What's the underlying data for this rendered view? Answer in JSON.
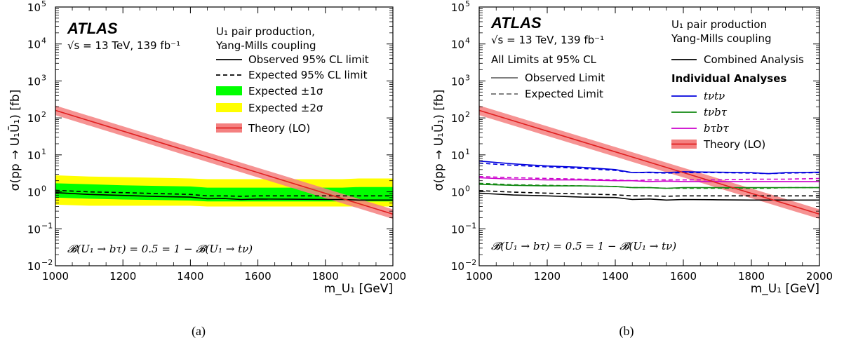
{
  "chart_data": [
    {
      "type": "line",
      "panel_caption": "(a)",
      "atlas_label": "ATLAS",
      "energy_lumi": "√s = 13 TeV, 139 fb⁻¹",
      "legend_title": [
        "U₁ pair production,",
        "Yang-Mills coupling"
      ],
      "limits_note": "",
      "xlabel": "m_U₁ [GeV]",
      "ylabel": "σ(pp → U₁Ū₁) [fb]",
      "branching_note": "𝓑(U₁ → bτ) = 0.5 = 1 − 𝓑(U₁ → tν)",
      "xlim": [
        1000,
        2000
      ],
      "ylim": [
        0.01,
        100000
      ],
      "yscale": "log",
      "x_ticks": [
        "1000",
        "1200",
        "1400",
        "1600",
        "1800",
        "2000"
      ],
      "y_ticks": [
        "10⁻²",
        "10⁻¹",
        "1",
        "10",
        "10²",
        "10³",
        "10⁴",
        "10⁵"
      ],
      "y_tick_labels": [
        "10",
        "10",
        "10",
        "10",
        "10",
        "10",
        "10",
        "10"
      ],
      "y_tick_exps": [
        "-2",
        "-1",
        "0",
        "1",
        "2",
        "3",
        "4",
        "5"
      ],
      "x": [
        1000,
        1100,
        1200,
        1300,
        1400,
        1450,
        1500,
        1550,
        1600,
        1700,
        1800,
        1850,
        1900,
        2000
      ],
      "bands": [
        {
          "name": "Expected ±2σ",
          "color": "#ffff00",
          "lower": [
            0.45,
            0.42,
            0.42,
            0.42,
            0.42,
            0.4,
            0.4,
            0.4,
            0.4,
            0.4,
            0.4,
            0.4,
            0.4,
            0.4
          ],
          "upper": [
            2.8,
            2.6,
            2.5,
            2.4,
            2.3,
            2.2,
            2.2,
            2.2,
            2.2,
            2.2,
            2.2,
            2.2,
            2.3,
            2.3
          ]
        },
        {
          "name": "Expected ±1σ",
          "color": "#00ff00",
          "lower": [
            0.7,
            0.65,
            0.62,
            0.6,
            0.58,
            0.55,
            0.55,
            0.55,
            0.55,
            0.55,
            0.55,
            0.55,
            0.55,
            0.55
          ],
          "upper": [
            1.7,
            1.6,
            1.5,
            1.45,
            1.4,
            1.3,
            1.3,
            1.3,
            1.3,
            1.3,
            1.3,
            1.3,
            1.35,
            1.35
          ]
        }
      ],
      "series": [
        {
          "name": "Observed 95% CL limit",
          "color": "#000000",
          "dash": "solid",
          "values": [
            0.95,
            0.85,
            0.8,
            0.75,
            0.72,
            0.65,
            0.66,
            0.62,
            0.64,
            0.63,
            0.62,
            0.62,
            0.6,
            0.6
          ]
        },
        {
          "name": "Expected 95% CL limit",
          "color": "#000000",
          "dash": "dashed",
          "values": [
            1.1,
            1.0,
            0.95,
            0.9,
            0.85,
            0.78,
            0.78,
            0.76,
            0.78,
            0.78,
            0.78,
            0.78,
            0.78,
            0.78
          ]
        }
      ],
      "theory": {
        "name": "Theory (LO)",
        "color": "#e02020",
        "band_color": "#f48080",
        "x": [
          1000,
          2000
        ],
        "values": [
          160,
          0.25
        ],
        "band_factor": 1.35
      },
      "legend_order": [
        "Observed 95% CL limit",
        "Expected 95% CL limit",
        "Expected ±1σ",
        "Expected ±2σ",
        "Theory (LO)"
      ]
    },
    {
      "type": "line",
      "panel_caption": "(b)",
      "atlas_label": "ATLAS",
      "energy_lumi": "√s = 13 TeV, 139 fb⁻¹",
      "legend_title": [
        "U₁ pair production",
        "Yang-Mills coupling"
      ],
      "limits_note": "All Limits at 95% CL",
      "xlabel": "m_U₁ [GeV]",
      "ylabel": "σ(pp → U₁Ū₁) [fb]",
      "branching_note": "𝓑(U₁ → bτ) = 0.5 = 1 − 𝓑(U₁ → tν)",
      "xlim": [
        1000,
        2000
      ],
      "ylim": [
        0.01,
        100000
      ],
      "yscale": "log",
      "x_ticks": [
        "1000",
        "1200",
        "1400",
        "1600",
        "1800",
        "2000"
      ],
      "y_tick_labels": [
        "10",
        "10",
        "10",
        "10",
        "10",
        "10",
        "10",
        "10"
      ],
      "y_tick_exps": [
        "-2",
        "-1",
        "0",
        "1",
        "2",
        "3",
        "4",
        "5"
      ],
      "x": [
        1000,
        1100,
        1200,
        1300,
        1400,
        1450,
        1500,
        1550,
        1600,
        1700,
        1800,
        1850,
        1900,
        2000
      ],
      "series": [
        {
          "name": "tνtν observed",
          "color": "#0000dd",
          "dash": "solid",
          "values": [
            6.8,
            5.7,
            5.0,
            4.6,
            4.0,
            3.3,
            3.4,
            3.3,
            3.5,
            3.4,
            3.3,
            3.1,
            3.3,
            3.4
          ]
        },
        {
          "name": "tνtν expected",
          "color": "#0000dd",
          "dash": "dashed",
          "values": [
            6.0,
            5.2,
            4.7,
            4.3,
            3.8,
            3.3,
            3.3,
            3.2,
            3.3,
            3.3,
            3.2,
            3.1,
            3.2,
            3.3
          ]
        },
        {
          "name": "bτbτ observed",
          "color": "#cc00cc",
          "dash": "solid",
          "values": [
            2.4,
            2.2,
            2.1,
            2.1,
            2.0,
            2.0,
            1.9,
            1.95,
            1.9,
            1.9,
            1.9,
            1.9,
            1.9,
            1.9
          ]
        },
        {
          "name": "bτbτ expected",
          "color": "#cc00cc",
          "dash": "dashed",
          "values": [
            2.6,
            2.4,
            2.3,
            2.2,
            2.1,
            2.0,
            2.1,
            2.1,
            2.1,
            2.1,
            2.2,
            2.2,
            2.2,
            2.3
          ]
        },
        {
          "name": "tνbτ observed",
          "color": "#118811",
          "dash": "solid",
          "values": [
            1.6,
            1.5,
            1.45,
            1.45,
            1.4,
            1.3,
            1.3,
            1.25,
            1.3,
            1.3,
            1.3,
            1.3,
            1.3,
            1.3
          ]
        },
        {
          "name": "tνbτ expected",
          "color": "#118811",
          "dash": "dashed",
          "values": [
            1.7,
            1.55,
            1.5,
            1.45,
            1.4,
            1.3,
            1.3,
            1.25,
            1.25,
            1.25,
            1.25,
            1.25,
            1.3,
            1.3
          ]
        },
        {
          "name": "Combined observed",
          "color": "#000000",
          "dash": "solid",
          "values": [
            0.92,
            0.82,
            0.78,
            0.72,
            0.7,
            0.62,
            0.64,
            0.6,
            0.62,
            0.61,
            0.6,
            0.6,
            0.6,
            0.6
          ]
        },
        {
          "name": "Combined expected",
          "color": "#000000",
          "dash": "dashed",
          "values": [
            1.08,
            0.98,
            0.92,
            0.88,
            0.83,
            0.78,
            0.78,
            0.76,
            0.78,
            0.78,
            0.78,
            0.78,
            0.78,
            0.78
          ]
        }
      ],
      "theory": {
        "name": "Theory (LO)",
        "color": "#e02020",
        "band_color": "#f48080",
        "x": [
          1000,
          2000
        ],
        "values": [
          160,
          0.25
        ],
        "band_factor": 1.35
      },
      "legend": {
        "combined": "Combined Analysis",
        "individual_header": "Individual Analyses",
        "observed": "Observed Limit",
        "expected": "Expected Limit",
        "tvtv": "tνtν",
        "tvbt": "tνbτ",
        "btbt": "bτbτ",
        "theory": "Theory (LO)"
      }
    }
  ],
  "labels": {
    "a_title_1": "U₁ pair production,",
    "a_title_2": "Yang-Mills coupling",
    "a_obs": "Observed 95% CL limit",
    "a_exp": "Expected 95% CL limit",
    "a_1s": "Expected ±1σ",
    "a_2s": "Expected ±2σ",
    "a_th": "Theory (LO)",
    "b_title_1": "U₁ pair production",
    "b_title_2": "Yang-Mills coupling",
    "b_note": "All Limits at 95% CL",
    "b_comb": "Combined Analysis",
    "b_ind": "Individual Analyses",
    "b_obs": "Observed Limit",
    "b_exp": "Expected Limit",
    "b_tvtv": "tνtν",
    "b_tvbt": "tνbτ",
    "b_btbt": "bτbτ",
    "b_th": "Theory (LO)",
    "atlas": "ATLAS",
    "energy": "√s = 13 TeV, 139 fb⁻¹",
    "branching": "𝓑(U₁ → bτ) = 0.5 = 1 − 𝓑(U₁ → tν)",
    "ylabel": "σ(pp → U₁Ū₁) [fb]",
    "xlabel": "m_U₁ [GeV]",
    "cap_a": "(a)",
    "cap_b": "(b)"
  }
}
